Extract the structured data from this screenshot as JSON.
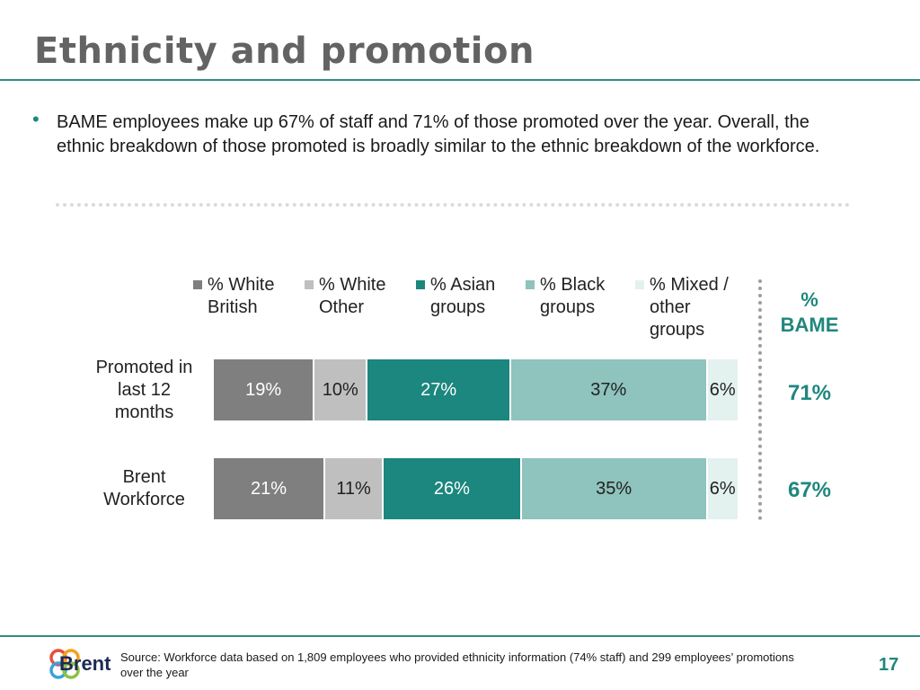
{
  "slide": {
    "title": "Ethnicity and promotion",
    "bullet": "BAME employees make up 67% of staff and 71% of those promoted over the year. Overall, the ethnic breakdown of those promoted is broadly similar to the ethnic breakdown of the workforce.",
    "source": "Source: Workforce data based on 1,809 employees who provided ethnicity information (74% staff) and 299 employees’ promotions over the year",
    "page_number": "17",
    "logo_text": "Brent"
  },
  "bame": {
    "header": "%\nBAME",
    "values": [
      "71%",
      "67%"
    ]
  },
  "chart_data": {
    "type": "bar",
    "orientation": "horizontal",
    "stacked": true,
    "normalized": true,
    "legend_position": "top",
    "grid": false,
    "categories": [
      "Promoted in\nlast 12\nmonths",
      "Brent\nWorkforce"
    ],
    "series": [
      {
        "name": "% White\nBritish",
        "values": [
          19,
          21
        ],
        "labels": [
          "19%",
          "21%"
        ],
        "color": "#7f7f7f",
        "text_color": "#ffffff"
      },
      {
        "name": "% White\nOther",
        "values": [
          10,
          11
        ],
        "labels": [
          "10%",
          "11%"
        ],
        "color": "#bfbfbf",
        "text_color": "#222222"
      },
      {
        "name": "% Asian\ngroups",
        "values": [
          27,
          26
        ],
        "labels": [
          "27%",
          "26%"
        ],
        "color": "#1b877e",
        "text_color": "#ffffff"
      },
      {
        "name": "% Black\ngroups",
        "values": [
          37,
          35
        ],
        "labels": [
          "37%",
          "35%"
        ],
        "color": "#8fc3bd",
        "text_color": "#222222"
      },
      {
        "name": "% Mixed /\nother\ngroups",
        "values": [
          6,
          6
        ],
        "labels": [
          "6%",
          "6%"
        ],
        "color": "#e3f1ef",
        "text_color": "#222222"
      }
    ]
  }
}
